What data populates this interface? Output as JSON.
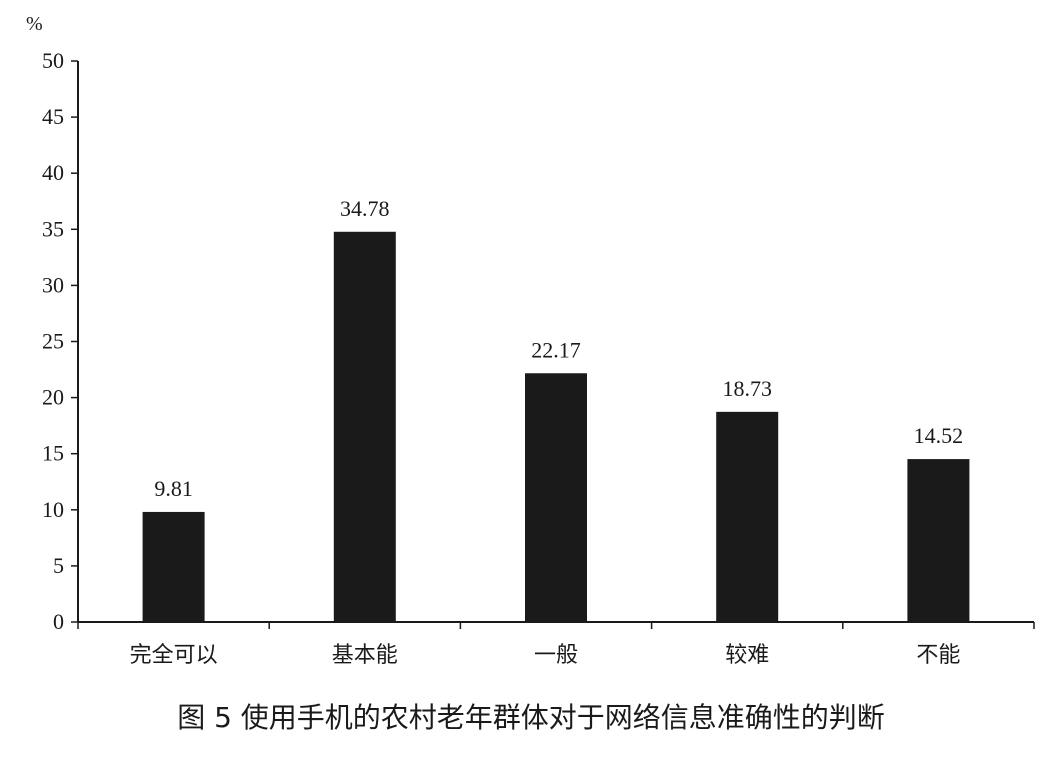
{
  "caption": "图 5  使用手机的农村老年群体对于网络信息准确性的判断",
  "chart_data": {
    "type": "bar",
    "y_unit": "%",
    "categories": [
      "完全可以",
      "基本能",
      "一般",
      "较难",
      "不能"
    ],
    "values": [
      9.81,
      34.78,
      22.17,
      18.73,
      14.52
    ],
    "value_labels": [
      "9.81",
      "34.78",
      "22.17",
      "18.73",
      "14.52"
    ],
    "ylim": [
      0,
      50
    ],
    "yticks": [
      0,
      5,
      10,
      15,
      20,
      25,
      30,
      35,
      40,
      45,
      50
    ],
    "grid": false,
    "bar_color": "#1a1a1a",
    "axis_color": "#1a1a1a"
  }
}
